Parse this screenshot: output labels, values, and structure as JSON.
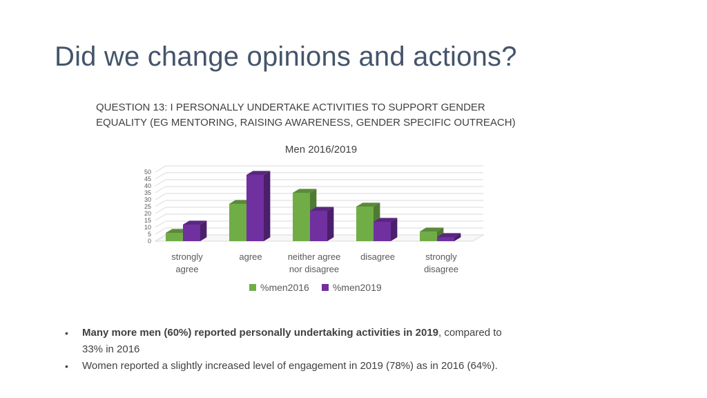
{
  "slide": {
    "title": "Did we change opinions and actions?",
    "question_line1": "QUESTION 13: I PERSONALLY UNDERTAKE ACTIVITIES TO SUPPORT GENDER",
    "question_line2": "EQUALITY (EG MENTORING, RAISING AWARENESS, GENDER SPECIFIC OUTREACH)"
  },
  "chart_data": {
    "type": "bar",
    "title": "Men 2016/2019",
    "categories": [
      [
        "strongly",
        "agree"
      ],
      [
        "agree"
      ],
      [
        "neither agree",
        "nor disagree"
      ],
      [
        "disagree"
      ],
      [
        "strongly",
        "disagree"
      ]
    ],
    "series": [
      {
        "name": "%men2016",
        "color": "#70ad47",
        "top_color": "#5a8a39",
        "side_color": "#4f7a32",
        "values": [
          6,
          27,
          35,
          25,
          7
        ]
      },
      {
        "name": "%men2019",
        "color": "#7030a0",
        "top_color": "#5a2680",
        "side_color": "#4b1f6b",
        "values": [
          12,
          48,
          22,
          14,
          3
        ]
      }
    ],
    "ylim": [
      0,
      50
    ],
    "yticks": [
      "0",
      "5",
      "10",
      "15",
      "20",
      "25",
      "30",
      "35",
      "40",
      "45",
      "50"
    ],
    "grid": true,
    "legend_position": "bottom",
    "style": "3d-clustered-column"
  },
  "bullets": [
    {
      "bold": "Many more men (60%) reported personally undertaking activities in 2019",
      "rest": ", compared to",
      "line2": "33% in 2016"
    },
    {
      "bold": "",
      "rest": "Women reported a slightly increased level of engagement in 2019 (78%) as in 2016 (64%).",
      "line2": ""
    }
  ],
  "bullet_symbol": "•"
}
